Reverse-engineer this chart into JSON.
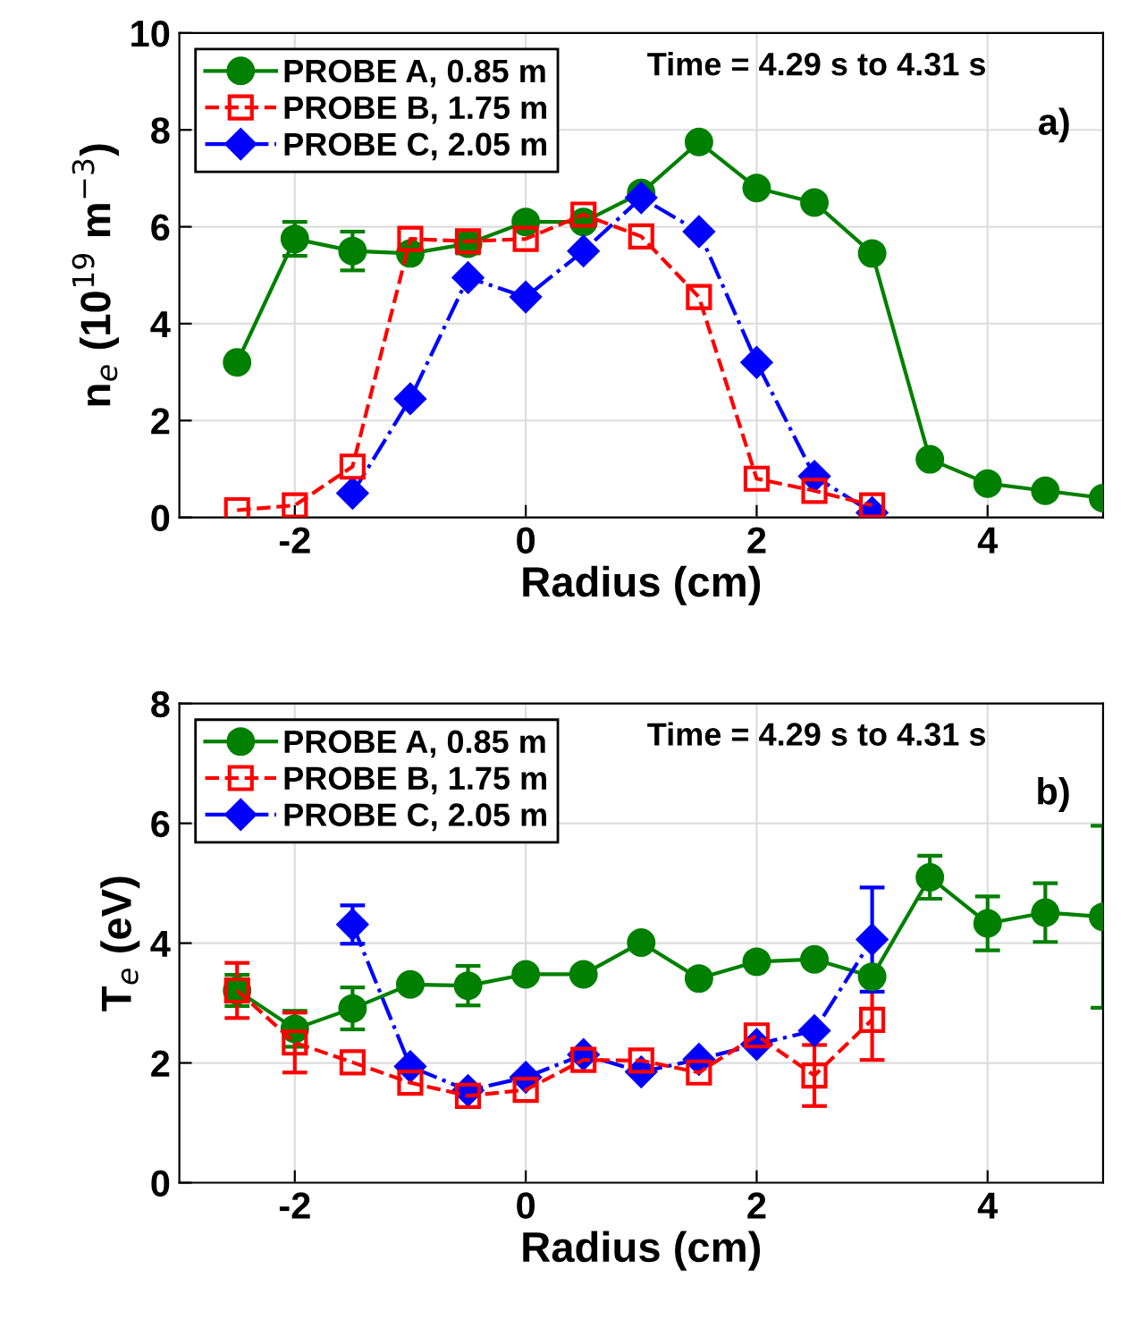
{
  "chart_data": [
    {
      "type": "line",
      "xlabel": "Radius (cm)",
      "ylabel": "n$_{e}$ (10$^{19}$ m$^{−3}$)",
      "annotations": [
        "Time = 4.29 s to 4.31 s",
        "a)"
      ],
      "xlim": [
        -3,
        5
      ],
      "ylim": [
        0,
        10
      ],
      "xticks": [
        -2,
        0,
        2,
        4
      ],
      "yticks": [
        0,
        2,
        4,
        6,
        8,
        10
      ],
      "grid": true,
      "legend": "top left",
      "series": [
        {
          "name": "PROBE A, 0.85 m",
          "color": "#008000",
          "marker": "circle",
          "line_style": "solid",
          "x": [
            -2.5,
            -2,
            -1.5,
            -1,
            -0.5,
            0,
            0.5,
            1,
            1.5,
            2,
            2.5,
            3,
            3.5,
            4,
            4.5,
            5
          ],
          "values": [
            3.2,
            5.75,
            5.5,
            5.45,
            5.65,
            6.1,
            6.1,
            6.7,
            7.75,
            6.8,
            6.5,
            5.45,
            1.2,
            0.7,
            0.55,
            0.4
          ],
          "errors": [
            null,
            0.35,
            0.4,
            null,
            0.2,
            null,
            null,
            null,
            null,
            null,
            null,
            null,
            null,
            null,
            null,
            null
          ]
        },
        {
          "name": "PROBE B, 1.75 m",
          "color": "#ff0000",
          "marker": "square",
          "line_style": "dashed",
          "x": [
            -2.5,
            -2,
            -1.5,
            -1,
            -0.5,
            0,
            0.5,
            1,
            1.5,
            2,
            2.5,
            3
          ],
          "values": [
            0.15,
            0.25,
            1.05,
            5.75,
            5.7,
            5.75,
            6.25,
            5.8,
            4.55,
            0.8,
            0.55,
            0.25
          ]
        },
        {
          "name": "PROBE C, 2.05 m",
          "color": "#0000ff",
          "marker": "diamond",
          "line_style": "dashdot",
          "x": [
            -1.5,
            -1,
            -0.5,
            0,
            0.5,
            1,
            1.5,
            2,
            2.5,
            3
          ],
          "values": [
            0.5,
            2.45,
            4.95,
            4.55,
            5.5,
            6.6,
            5.9,
            3.2,
            0.85,
            0.1
          ]
        }
      ]
    },
    {
      "type": "line",
      "xlabel": "Radius (cm)",
      "ylabel": "T$_{e}$ (eV)",
      "annotations": [
        "Time = 4.29 s to 4.31 s",
        "b)"
      ],
      "xlim": [
        -3,
        5
      ],
      "ylim": [
        0,
        8
      ],
      "xticks": [
        -2,
        0,
        2,
        4
      ],
      "yticks": [
        0,
        2,
        4,
        6,
        8
      ],
      "grid": true,
      "legend": "top left",
      "series": [
        {
          "name": "PROBE A, 0.85 m",
          "color": "#008000",
          "marker": "circle",
          "line_style": "solid",
          "x": [
            -2.5,
            -2,
            -1.5,
            -1,
            -0.5,
            0,
            0.5,
            1,
            1.5,
            2,
            2.5,
            3,
            3.5,
            4,
            4.5,
            5
          ],
          "values": [
            3.21,
            2.57,
            2.91,
            3.31,
            3.29,
            3.48,
            3.48,
            4.01,
            3.41,
            3.69,
            3.73,
            3.44,
            5.1,
            4.33,
            4.51,
            4.44
          ],
          "errors": [
            0.26,
            0.3,
            0.35,
            null,
            0.33,
            null,
            null,
            null,
            null,
            null,
            null,
            null,
            0.36,
            0.45,
            0.49,
            1.52
          ]
        },
        {
          "name": "PROBE B, 1.75 m",
          "color": "#ff0000",
          "marker": "square",
          "line_style": "dashed",
          "x": [
            -2.5,
            -2,
            -1.5,
            -1,
            -0.5,
            0,
            0.5,
            1,
            1.5,
            2,
            2.5,
            3
          ],
          "values": [
            3.21,
            2.34,
            2.01,
            1.67,
            1.45,
            1.55,
            2.05,
            2.04,
            1.84,
            2.46,
            1.79,
            2.72
          ],
          "errors": [
            0.46,
            0.5,
            null,
            null,
            null,
            null,
            null,
            null,
            null,
            null,
            0.51,
            0.67
          ]
        },
        {
          "name": "PROBE C, 2.05 m",
          "color": "#0000ff",
          "marker": "diamond",
          "line_style": "dashdot",
          "x": [
            -1.5,
            -1,
            -0.5,
            0,
            0.5,
            1,
            1.5,
            2,
            2.5,
            3
          ],
          "values": [
            4.31,
            1.94,
            1.54,
            1.76,
            2.14,
            1.85,
            2.06,
            2.31,
            2.54,
            4.06
          ],
          "errors": [
            0.32,
            null,
            null,
            null,
            null,
            null,
            null,
            null,
            null,
            0.87
          ]
        }
      ]
    }
  ]
}
